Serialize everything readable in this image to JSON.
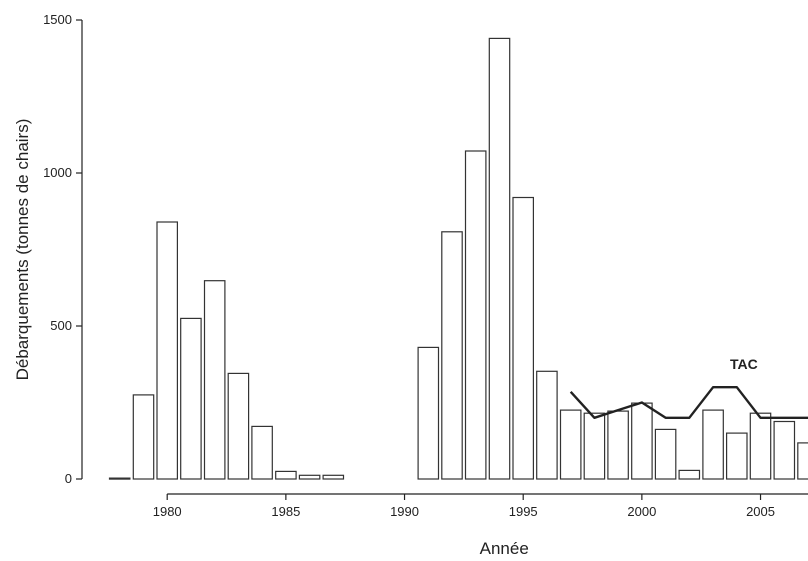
{
  "chart_data": {
    "type": "bar",
    "title": "",
    "xlabel": "Année",
    "ylabel": "Débarquements (tonnes de chairs)",
    "x": [
      1978,
      1979,
      1980,
      1981,
      1982,
      1983,
      1984,
      1985,
      1986,
      1987,
      1988,
      1989,
      1990,
      1991,
      1992,
      1993,
      1994,
      1995,
      1996,
      1997,
      1998,
      1999,
      2000,
      2001,
      2002,
      2003,
      2004,
      2005,
      2006,
      2007
    ],
    "values": [
      3,
      275,
      840,
      525,
      648,
      345,
      172,
      25,
      12,
      12,
      0,
      0,
      0,
      430,
      808,
      1072,
      1440,
      920,
      352,
      225,
      215,
      222,
      248,
      162,
      28,
      225,
      150,
      215,
      188,
      118
    ],
    "xlim": [
      1977.0,
      2007.0
    ],
    "ylim": [
      0,
      1500
    ],
    "xticks": [
      1980,
      1985,
      1990,
      1995,
      2000,
      2005
    ],
    "yticks": [
      0,
      500,
      1000,
      1500
    ],
    "grid": false,
    "bar_fill": "#ffffff",
    "bar_stroke": "#333333",
    "line_series": {
      "name": "TAC",
      "color": "#222222",
      "x": [
        1997,
        1998,
        1999,
        2000,
        2001,
        2002,
        2003,
        2004,
        2005,
        2006,
        2007
      ],
      "y": [
        285,
        200,
        225,
        250,
        200,
        200,
        300,
        300,
        200,
        200,
        200
      ]
    },
    "annotations": [
      {
        "text": "TAC",
        "x": 2004.3,
        "y": 360
      }
    ]
  }
}
